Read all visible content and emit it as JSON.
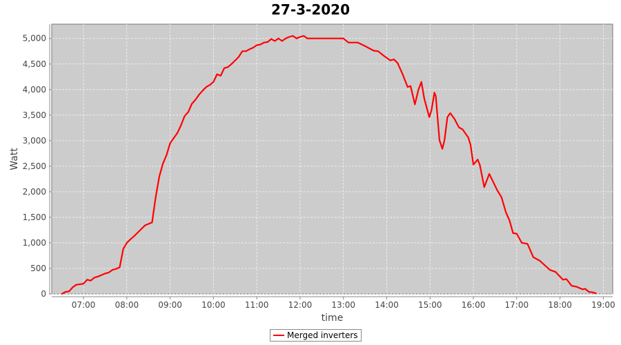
{
  "chart_data": {
    "type": "line",
    "title": "27-3-2020",
    "xlabel": "time",
    "ylabel": "Watt",
    "xlim": [
      "06:16",
      "19:13"
    ],
    "ylim": [
      0,
      5280
    ],
    "grid": true,
    "legend_position": "bottom",
    "x_ticks": [
      "07:00",
      "08:00",
      "09:00",
      "10:00",
      "11:00",
      "12:00",
      "13:00",
      "14:00",
      "15:00",
      "16:00",
      "17:00",
      "18:00",
      "19:00"
    ],
    "y_ticks": [
      "0",
      "500",
      "1,000",
      "1,500",
      "2,000",
      "2,500",
      "3,000",
      "3,500",
      "4,000",
      "4,500",
      "5,000"
    ],
    "colors": {
      "series": "#ff0000",
      "plot_bg": "#cccccc"
    },
    "series": [
      {
        "name": "Merged inverters",
        "x": [
          "06:30",
          "06:35",
          "06:40",
          "06:45",
          "06:50",
          "06:55",
          "07:00",
          "07:05",
          "07:10",
          "07:15",
          "07:20",
          "07:25",
          "07:30",
          "07:35",
          "07:40",
          "07:45",
          "07:50",
          "07:55",
          "08:00",
          "08:05",
          "08:10",
          "08:15",
          "08:20",
          "08:25",
          "08:30",
          "08:35",
          "08:40",
          "08:45",
          "08:50",
          "08:55",
          "09:00",
          "09:05",
          "09:10",
          "09:15",
          "09:20",
          "09:25",
          "09:30",
          "09:35",
          "09:40",
          "09:45",
          "09:50",
          "09:55",
          "10:00",
          "10:05",
          "10:10",
          "10:15",
          "10:20",
          "10:25",
          "10:30",
          "10:35",
          "10:40",
          "10:45",
          "10:50",
          "10:55",
          "11:00",
          "11:05",
          "11:10",
          "11:15",
          "11:20",
          "11:25",
          "11:30",
          "11:35",
          "11:40",
          "11:45",
          "11:50",
          "11:55",
          "12:00",
          "12:05",
          "12:10",
          "12:15",
          "12:20",
          "12:30",
          "12:40",
          "12:50",
          "13:00",
          "13:07",
          "13:20",
          "13:30",
          "13:42",
          "13:48",
          "13:56",
          "14:05",
          "14:10",
          "14:15",
          "14:22",
          "14:29",
          "14:33",
          "14:39",
          "14:44",
          "14:48",
          "14:52",
          "14:59",
          "15:02",
          "15:06",
          "15:08",
          "15:13",
          "15:17",
          "15:20",
          "15:24",
          "15:28",
          "15:34",
          "15:40",
          "15:45",
          "15:53",
          "15:56",
          "16:00",
          "16:06",
          "16:09",
          "16:15",
          "16:22",
          "16:33",
          "16:39",
          "16:45",
          "16:50",
          "16:55",
          "17:00",
          "17:07",
          "17:15",
          "17:23",
          "17:32",
          "17:46",
          "17:54",
          "18:04",
          "18:09",
          "18:16",
          "18:23",
          "18:31",
          "18:35",
          "18:40",
          "18:46",
          "18:50"
        ],
        "values": [
          0,
          40,
          50,
          130,
          180,
          190,
          200,
          280,
          260,
          320,
          340,
          370,
          400,
          420,
          470,
          490,
          520,
          880,
          1000,
          1070,
          1130,
          1200,
          1270,
          1340,
          1370,
          1400,
          1900,
          2300,
          2550,
          2720,
          2950,
          3050,
          3150,
          3300,
          3480,
          3560,
          3720,
          3800,
          3900,
          3980,
          4050,
          4090,
          4150,
          4300,
          4270,
          4420,
          4440,
          4500,
          4570,
          4640,
          4750,
          4750,
          4790,
          4820,
          4870,
          4880,
          4920,
          4930,
          4990,
          4950,
          5000,
          4950,
          5000,
          5030,
          5050,
          5000,
          5030,
          5050,
          5000,
          5000,
          5000,
          5000,
          5000,
          5000,
          5000,
          4920,
          4920,
          4850,
          4760,
          4750,
          4660,
          4570,
          4590,
          4520,
          4300,
          4050,
          4070,
          3710,
          4000,
          4150,
          3820,
          3460,
          3600,
          3940,
          3870,
          3010,
          2840,
          3010,
          3460,
          3540,
          3420,
          3260,
          3220,
          3060,
          2920,
          2530,
          2630,
          2520,
          2090,
          2350,
          2030,
          1890,
          1600,
          1440,
          1190,
          1180,
          1000,
          980,
          720,
          650,
          470,
          430,
          280,
          290,
          160,
          140,
          90,
          100,
          40,
          30,
          10
        ]
      }
    ]
  }
}
